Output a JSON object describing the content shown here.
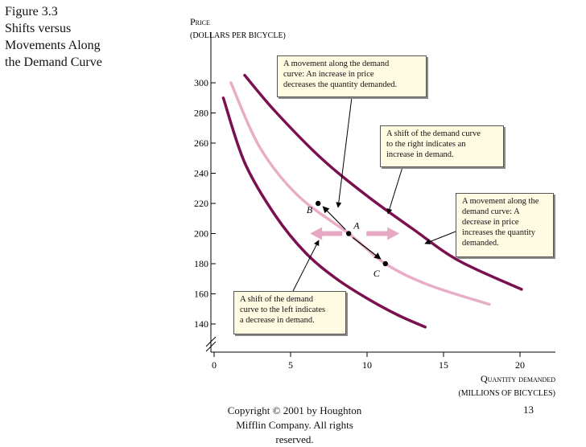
{
  "figure": {
    "title_lines": [
      "Figure 3.3",
      "Shifts versus",
      "Movements Along",
      "the Demand Curve"
    ]
  },
  "footer": {
    "copyright_lines": [
      "Copyright © 2001 by Houghton",
      "Mifflin Company. All rights",
      "reserved."
    ],
    "page_number": "13"
  },
  "chart_data": {
    "type": "line",
    "ylabel": "Price",
    "ylabel_sub": "(DOLLARS PER BICYCLE)",
    "xlabel": "Quantity demanded",
    "xlabel_sub": "(MILLIONS OF BICYCLES)",
    "xlim": [
      0,
      22
    ],
    "ylim": [
      130,
      310
    ],
    "x_ticks": [
      "0",
      "5",
      "10",
      "15",
      "20"
    ],
    "y_ticks": [
      "140",
      "160",
      "180",
      "200",
      "220",
      "240",
      "260",
      "280",
      "300"
    ],
    "series": [
      {
        "key": "left",
        "color": "#7a1050",
        "points": [
          [
            0.6,
            290
          ],
          [
            2,
            247
          ],
          [
            4,
            212
          ],
          [
            6,
            187
          ],
          [
            8,
            170
          ],
          [
            10,
            157
          ],
          [
            12,
            146
          ],
          [
            13.8,
            138
          ]
        ]
      },
      {
        "key": "original",
        "color": "#e8aec8",
        "points": [
          [
            1.1,
            300
          ],
          [
            3,
            257
          ],
          [
            5.5,
            225
          ],
          [
            8.8,
            200
          ],
          [
            11.2,
            180
          ],
          [
            14,
            166
          ],
          [
            18,
            153
          ]
        ]
      },
      {
        "key": "right",
        "color": "#7a1050",
        "points": [
          [
            2,
            305
          ],
          [
            4,
            281
          ],
          [
            7,
            250
          ],
          [
            10,
            225
          ],
          [
            13,
            203
          ],
          [
            16,
            182
          ],
          [
            20.1,
            163
          ]
        ]
      }
    ],
    "points": [
      {
        "label": "B",
        "x": 6.8,
        "y": 220
      },
      {
        "label": "A",
        "x": 8.8,
        "y": 200
      },
      {
        "label": "C",
        "x": 11.2,
        "y": 180
      }
    ],
    "annotations": [
      {
        "key": "ann1",
        "lines": [
          "A movement along the demand",
          "curve: An increase in price",
          "decreases the quantity demanded."
        ]
      },
      {
        "key": "ann2",
        "lines": [
          "A shift of the demand curve",
          "to the right indicates an",
          "increase in demand."
        ]
      },
      {
        "key": "ann3",
        "lines": [
          "A movement along the",
          "demand curve: A",
          "decrease in price",
          "increases the quantity",
          "demanded."
        ]
      },
      {
        "key": "ann4",
        "lines": [
          "A shift of the demand",
          "curve to the left indicates",
          "a decrease in demand."
        ]
      }
    ],
    "colors": {
      "dark_curve": "#7a1050",
      "light_curve": "#e8aec8",
      "shift_arrow": "#e6a8c3",
      "annotation_bg": "#fffbe2"
    }
  }
}
